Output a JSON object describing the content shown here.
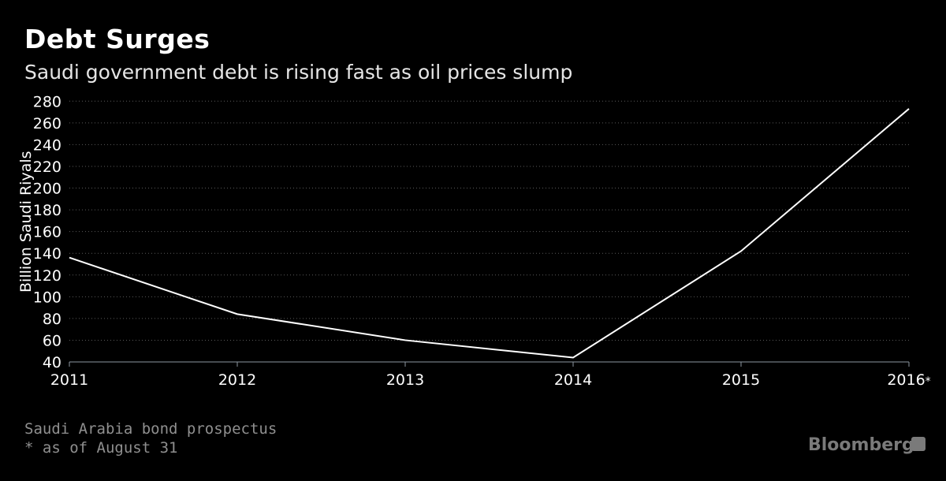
{
  "chart_data": {
    "type": "line",
    "title": "Debt Surges",
    "subtitle": "Saudi government debt is rising fast as oil prices slump",
    "ylabel": "Billion Saudi Riyals",
    "xlabel": "",
    "categories": [
      "2011",
      "2012",
      "2013",
      "2014",
      "2015",
      "2016*"
    ],
    "series": [
      {
        "name": "Saudi government debt",
        "values": [
          136,
          84,
          60,
          44,
          142,
          273
        ]
      }
    ],
    "ylim": [
      40,
      280
    ],
    "yticks": [
      40,
      60,
      80,
      100,
      120,
      140,
      160,
      180,
      200,
      220,
      240,
      260,
      280
    ],
    "grid": true,
    "colors": {
      "line": "#ffffff",
      "grid": "#5a5a5a",
      "axis": "#8c96a0"
    }
  },
  "footer": {
    "source": "Saudi Arabia bond prospectus",
    "note": "* as of August 31",
    "brand": "Bloomberg"
  }
}
